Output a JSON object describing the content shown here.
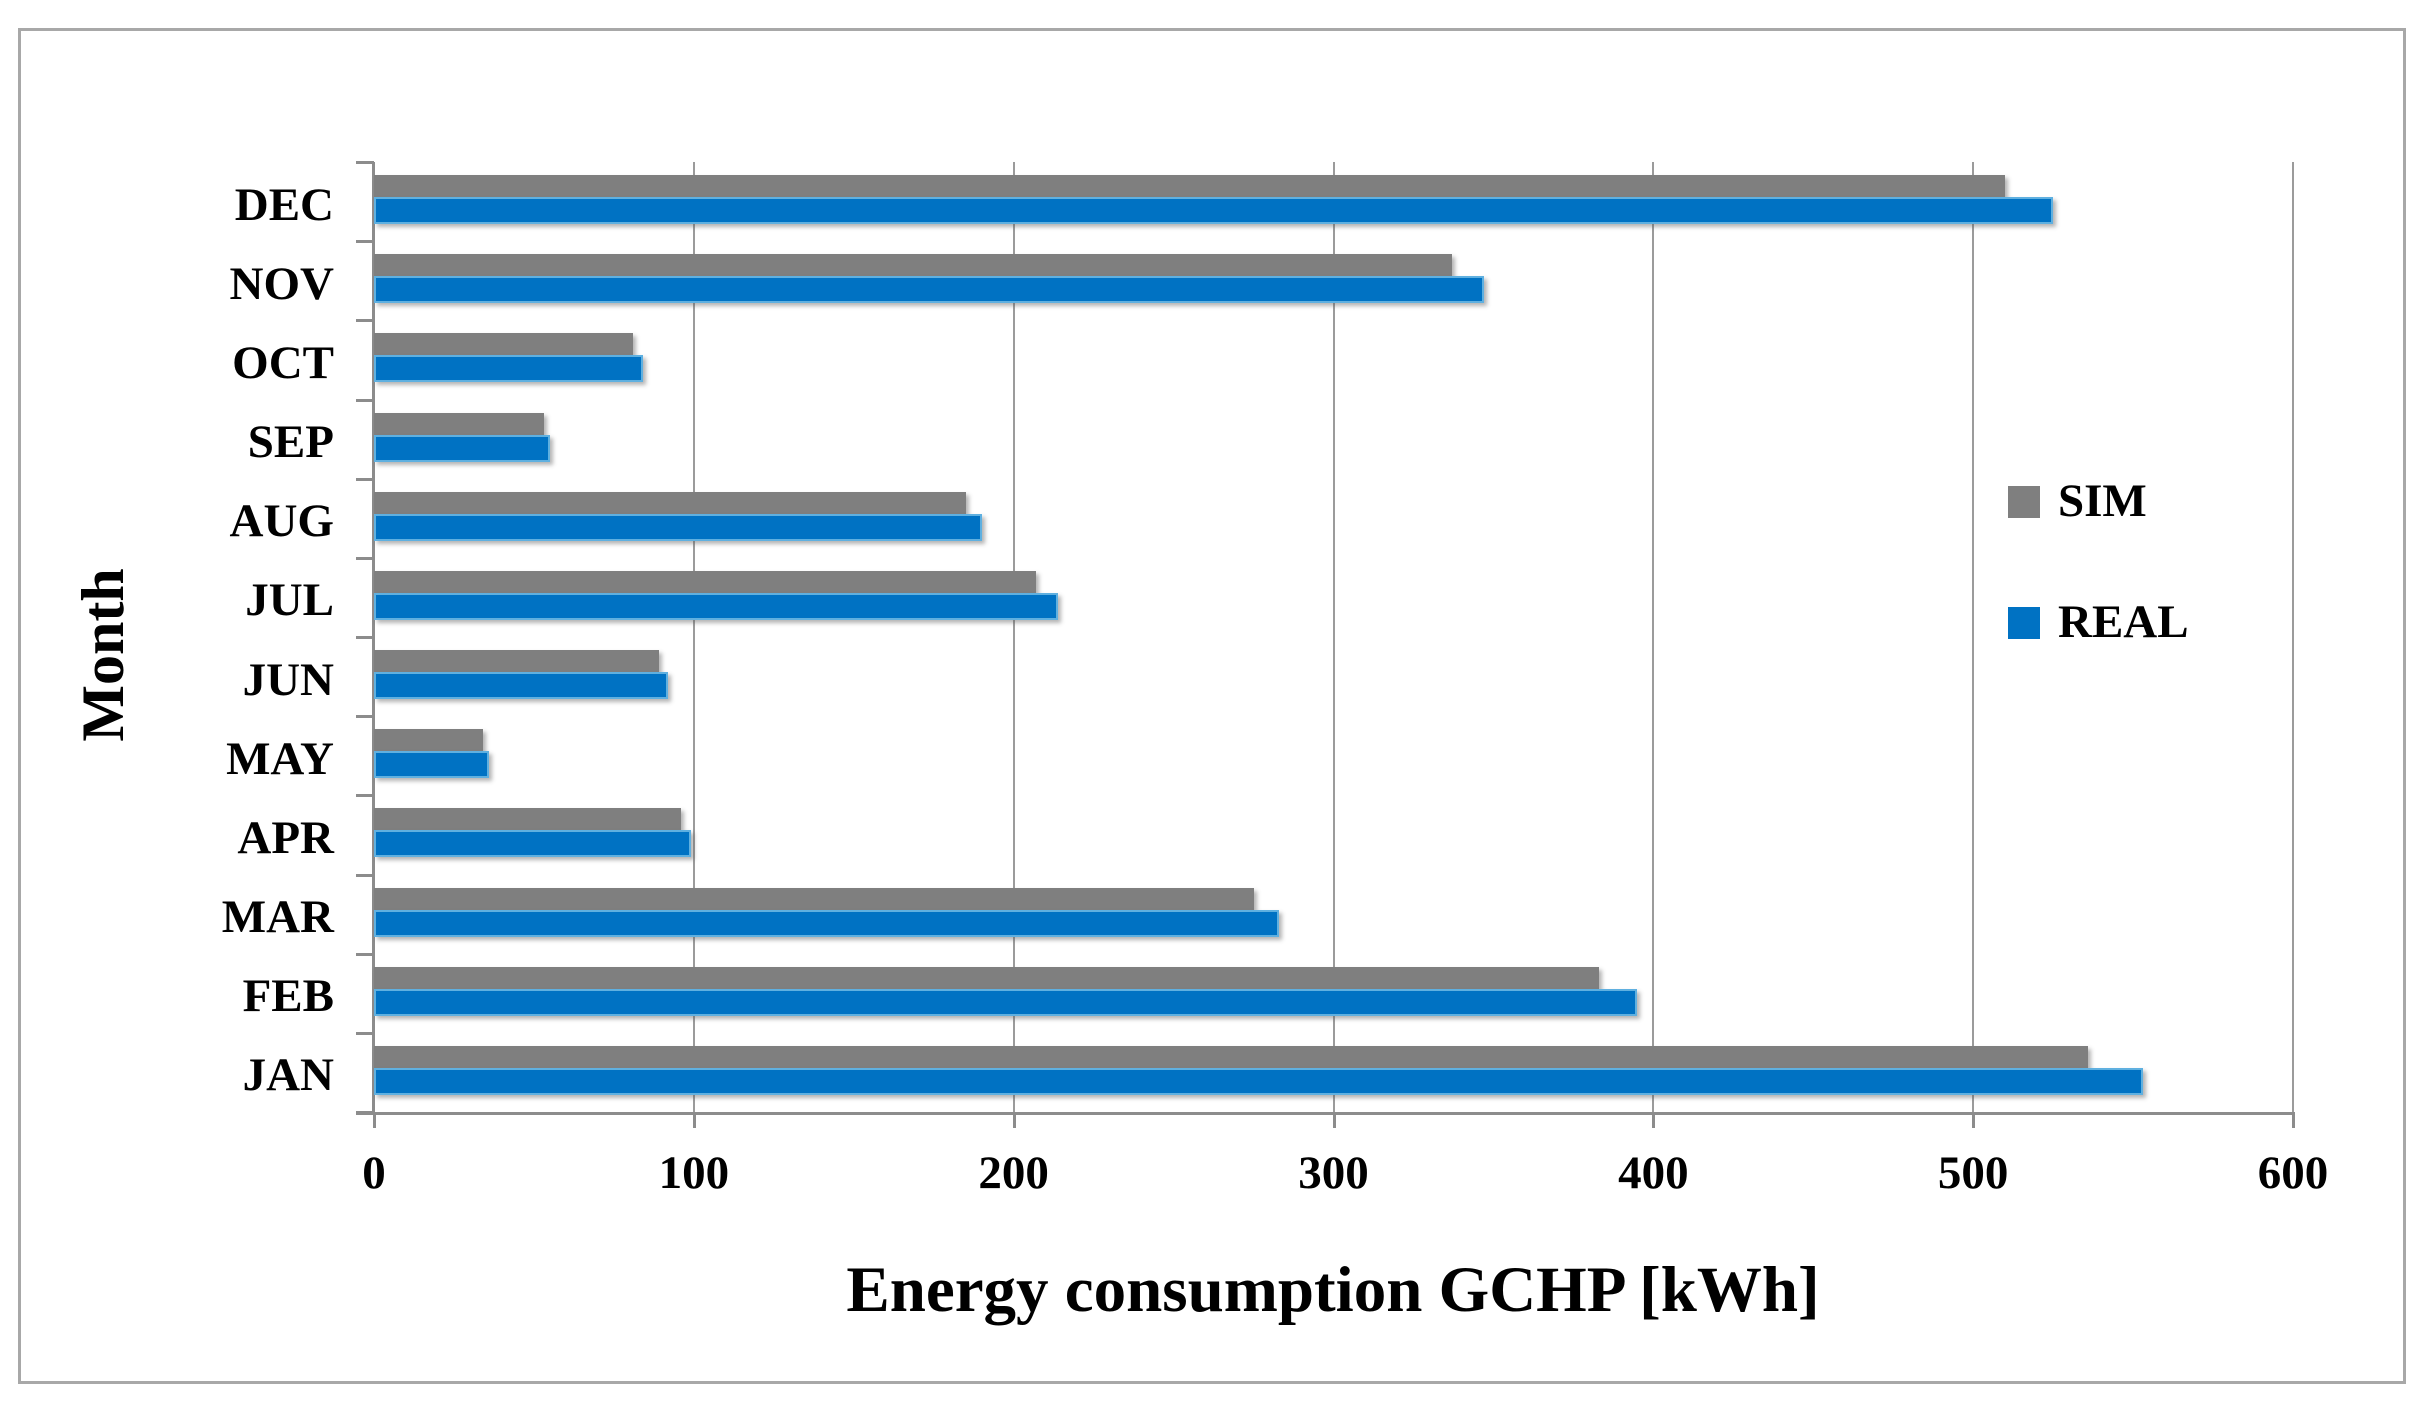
{
  "figure": {
    "background": "#ffffff",
    "border_color": "#a8a8a8",
    "gridline_color": "#9b9b9b",
    "axis_color": "#8c8c8c"
  },
  "chart_data": {
    "type": "bar",
    "orientation": "horizontal",
    "xlabel": "Energy consumption GCHP [kWh]",
    "ylabel": "Month",
    "xlim": [
      0,
      600
    ],
    "xticks": [
      "0",
      "100",
      "200",
      "300",
      "400",
      "500",
      "600"
    ],
    "grid": "vertical-major",
    "legend_position": "right-inside",
    "categories_top_to_bottom": [
      "DEC",
      "NOV",
      "OCT",
      "SEP",
      "AUG",
      "JUL",
      "JUN",
      "MAY",
      "APR",
      "MAR",
      "FEB",
      "JAN"
    ],
    "series": [
      {
        "name": "SIM",
        "color": "#7f7f7f",
        "values": [
          510,
          337,
          81,
          53,
          185,
          207,
          89,
          34,
          96,
          275,
          383,
          536
        ]
      },
      {
        "name": "REAL",
        "color": "#0072c3",
        "values": [
          525,
          347,
          84,
          55,
          190,
          214,
          92,
          36,
          99,
          283,
          395,
          553
        ]
      }
    ]
  }
}
